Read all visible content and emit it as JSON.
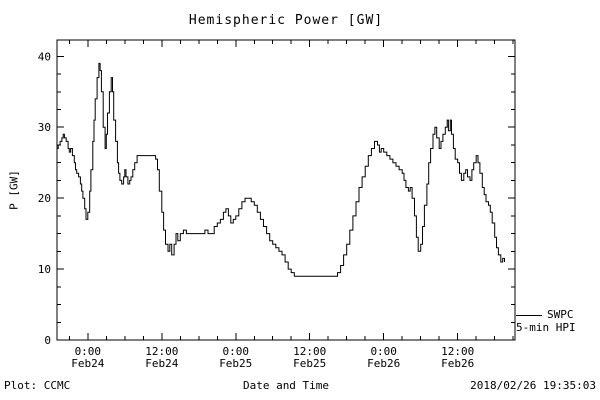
{
  "title": "Hemispheric Power [GW]",
  "legend": {
    "label": "SWPC",
    "sublabel": "5-min HPI"
  },
  "footer": {
    "left": "Plot: CCMC",
    "right": "2018/02/26 19:35:03"
  },
  "chart_data": {
    "type": "line",
    "title": "Hemispheric Power [GW]",
    "xlabel": "Date and Time",
    "ylabel": "P [GW]",
    "ylim": [
      0,
      42.3
    ],
    "xlim_hours": [
      -5,
      69.3
    ],
    "x_unit": "hours from Feb24 00:00",
    "y_ticks": [
      0,
      10,
      20,
      30,
      40
    ],
    "y_minor_step": 2.5,
    "x_minor_step_hours": 3,
    "x_ticks": [
      {
        "hours": 0,
        "label": "0:00",
        "sublabel": "Feb24"
      },
      {
        "hours": 12,
        "label": "12:00",
        "sublabel": "Feb24"
      },
      {
        "hours": 24,
        "label": "0:00",
        "sublabel": "Feb25"
      },
      {
        "hours": 36,
        "label": "12:00",
        "sublabel": "Feb25"
      },
      {
        "hours": 48,
        "label": "0:00",
        "sublabel": "Feb26"
      },
      {
        "hours": 60,
        "label": "12:00",
        "sublabel": "Feb26"
      }
    ],
    "grid": false,
    "legend_position": "right-outside-bottom",
    "line_color": "#000000",
    "series": [
      {
        "name": "SWPC 5-min HPI",
        "points": [
          [
            -5,
            27
          ],
          [
            -4.8,
            27.5
          ],
          [
            -4.5,
            28
          ],
          [
            -4.2,
            28.5
          ],
          [
            -4,
            29
          ],
          [
            -3.8,
            28.5
          ],
          [
            -3.5,
            28
          ],
          [
            -3.2,
            27
          ],
          [
            -3,
            26.5
          ],
          [
            -2.8,
            27
          ],
          [
            -2.5,
            26
          ],
          [
            -2.2,
            25
          ],
          [
            -2,
            24
          ],
          [
            -1.8,
            23.5
          ],
          [
            -1.5,
            23
          ],
          [
            -1.2,
            22
          ],
          [
            -1,
            21
          ],
          [
            -0.8,
            20
          ],
          [
            -0.5,
            18.5
          ],
          [
            -0.3,
            17
          ],
          [
            0,
            18
          ],
          [
            0.3,
            21
          ],
          [
            0.5,
            24
          ],
          [
            0.8,
            28
          ],
          [
            1,
            31
          ],
          [
            1.2,
            34
          ],
          [
            1.5,
            37
          ],
          [
            1.8,
            39
          ],
          [
            2,
            38
          ],
          [
            2.2,
            35
          ],
          [
            2.5,
            30
          ],
          [
            2.8,
            27
          ],
          [
            3,
            29
          ],
          [
            3.2,
            32
          ],
          [
            3.5,
            35
          ],
          [
            3.8,
            37
          ],
          [
            4,
            35
          ],
          [
            4.2,
            31
          ],
          [
            4.5,
            28
          ],
          [
            4.8,
            25
          ],
          [
            5,
            23.5
          ],
          [
            5.2,
            22.5
          ],
          [
            5.5,
            22
          ],
          [
            5.8,
            23
          ],
          [
            6,
            24
          ],
          [
            6.2,
            23
          ],
          [
            6.5,
            22
          ],
          [
            6.8,
            22.5
          ],
          [
            7,
            23
          ],
          [
            7.3,
            24
          ],
          [
            7.6,
            25
          ],
          [
            8,
            26
          ],
          [
            8.5,
            26
          ],
          [
            9,
            26
          ],
          [
            9.5,
            26
          ],
          [
            10,
            26
          ],
          [
            10.5,
            26
          ],
          [
            11,
            25.5
          ],
          [
            11.3,
            24
          ],
          [
            11.6,
            21
          ],
          [
            12,
            18
          ],
          [
            12.3,
            15.5
          ],
          [
            12.6,
            13.5
          ],
          [
            13,
            12.5
          ],
          [
            13.3,
            13.5
          ],
          [
            13.6,
            12
          ],
          [
            14,
            13.5
          ],
          [
            14.3,
            15
          ],
          [
            14.6,
            14
          ],
          [
            15,
            15
          ],
          [
            15.5,
            15.5
          ],
          [
            16,
            15
          ],
          [
            16.5,
            15
          ],
          [
            17,
            15
          ],
          [
            17.5,
            15
          ],
          [
            18,
            15
          ],
          [
            18.5,
            15
          ],
          [
            19,
            15.5
          ],
          [
            19.5,
            15
          ],
          [
            20,
            15
          ],
          [
            20.5,
            16
          ],
          [
            21,
            16.5
          ],
          [
            21.5,
            17
          ],
          [
            22,
            18
          ],
          [
            22.4,
            18.5
          ],
          [
            22.8,
            17.5
          ],
          [
            23.2,
            16.5
          ],
          [
            23.6,
            17
          ],
          [
            24,
            17.5
          ],
          [
            24.5,
            18.5
          ],
          [
            25,
            19.5
          ],
          [
            25.5,
            20
          ],
          [
            26,
            20
          ],
          [
            26.5,
            19.5
          ],
          [
            27,
            19
          ],
          [
            27.5,
            18
          ],
          [
            28,
            17
          ],
          [
            28.5,
            16
          ],
          [
            29,
            15
          ],
          [
            29.5,
            14
          ],
          [
            30,
            13.5
          ],
          [
            30.5,
            13
          ],
          [
            31,
            12.5
          ],
          [
            31.5,
            12
          ],
          [
            32,
            11
          ],
          [
            32.5,
            10
          ],
          [
            33,
            9.5
          ],
          [
            33.5,
            9
          ],
          [
            34,
            9
          ],
          [
            35,
            9
          ],
          [
            36,
            9
          ],
          [
            37,
            9
          ],
          [
            38,
            9
          ],
          [
            39,
            9
          ],
          [
            40,
            9
          ],
          [
            40.5,
            9.5
          ],
          [
            41,
            10.5
          ],
          [
            41.5,
            12
          ],
          [
            42,
            13.5
          ],
          [
            42.5,
            15.5
          ],
          [
            43,
            17.5
          ],
          [
            43.5,
            19.5
          ],
          [
            44,
            21.5
          ],
          [
            44.5,
            23
          ],
          [
            45,
            24.5
          ],
          [
            45.5,
            26
          ],
          [
            46,
            27
          ],
          [
            46.5,
            28
          ],
          [
            47,
            27.5
          ],
          [
            47.3,
            26.5
          ],
          [
            47.6,
            27
          ],
          [
            48,
            26.5
          ],
          [
            48.5,
            26
          ],
          [
            49,
            25.5
          ],
          [
            49.5,
            25
          ],
          [
            50,
            24.5
          ],
          [
            50.5,
            24
          ],
          [
            51,
            23.5
          ],
          [
            51.3,
            22.5
          ],
          [
            51.6,
            21.5
          ],
          [
            52,
            21
          ],
          [
            52.3,
            21.5
          ],
          [
            52.6,
            20
          ],
          [
            53,
            17.5
          ],
          [
            53.3,
            14.5
          ],
          [
            53.6,
            12.5
          ],
          [
            54,
            13.5
          ],
          [
            54.3,
            16
          ],
          [
            54.6,
            19
          ],
          [
            55,
            22
          ],
          [
            55.3,
            25
          ],
          [
            55.6,
            27
          ],
          [
            56,
            29
          ],
          [
            56.3,
            30
          ],
          [
            56.6,
            28.5
          ],
          [
            57,
            27
          ],
          [
            57.3,
            28
          ],
          [
            57.6,
            29
          ],
          [
            58,
            30
          ],
          [
            58.3,
            31
          ],
          [
            58.5,
            29.5
          ],
          [
            58.8,
            31
          ],
          [
            59,
            29
          ],
          [
            59.3,
            27
          ],
          [
            59.6,
            25.5
          ],
          [
            60,
            25
          ],
          [
            60.3,
            23.5
          ],
          [
            60.6,
            22.5
          ],
          [
            61,
            23.5
          ],
          [
            61.3,
            24
          ],
          [
            61.6,
            23
          ],
          [
            62,
            22.5
          ],
          [
            62.3,
            24
          ],
          [
            62.6,
            25
          ],
          [
            63,
            26
          ],
          [
            63.3,
            25
          ],
          [
            63.6,
            23.5
          ],
          [
            64,
            21.5
          ],
          [
            64.3,
            20.5
          ],
          [
            64.6,
            19.5
          ],
          [
            65,
            19
          ],
          [
            65.3,
            18
          ],
          [
            65.6,
            16.5
          ],
          [
            66,
            14.5
          ],
          [
            66.3,
            13
          ],
          [
            66.6,
            12
          ],
          [
            67,
            11
          ],
          [
            67.3,
            11.5
          ],
          [
            67.6,
            11
          ]
        ]
      }
    ]
  }
}
